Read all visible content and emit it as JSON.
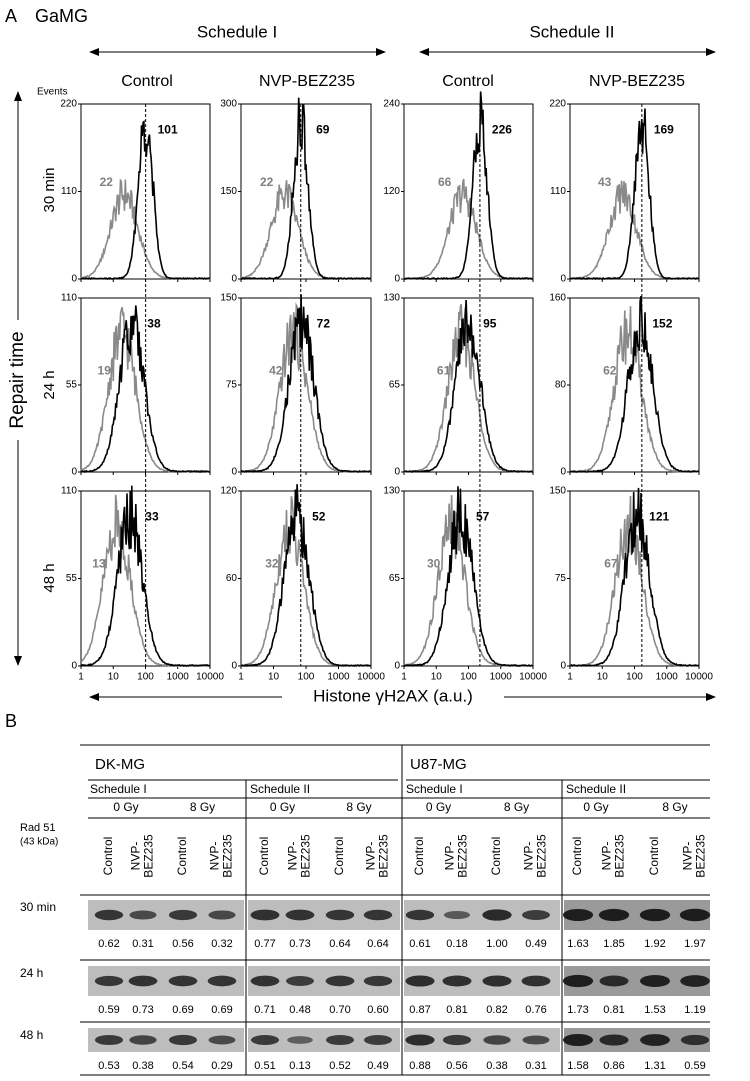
{
  "panel_a": {
    "label": "A",
    "cell_line": "GaMG",
    "schedules": [
      "Schedule I",
      "Schedule II"
    ],
    "columns": [
      "Control",
      "NVP-BEZ235",
      "Control",
      "NVP-BEZ235"
    ],
    "y_axis_title": "Events",
    "row_axis_title": "Repair time",
    "rows": [
      "30 min",
      "24 h",
      "48 h"
    ],
    "x_axis_title": "Histone γH2AX (a.u.)",
    "xticks": [
      1,
      10,
      100,
      1000,
      10000
    ],
    "panels": [
      [
        {
          "yticks": [
            0,
            110,
            220
          ],
          "gray": 22,
          "black": 101
        },
        {
          "yticks": [
            0,
            150,
            300
          ],
          "gray": 22,
          "black": 69
        },
        {
          "yticks": [
            0,
            120,
            240
          ],
          "gray": 66,
          "black": 226
        },
        {
          "yticks": [
            0,
            110,
            220
          ],
          "gray": 43,
          "black": 169
        }
      ],
      [
        {
          "yticks": [
            0,
            55,
            110
          ],
          "gray": 19,
          "black": 38
        },
        {
          "yticks": [
            0,
            75,
            150
          ],
          "gray": 42,
          "black": 72
        },
        {
          "yticks": [
            0,
            65,
            130
          ],
          "gray": 61,
          "black": 95
        },
        {
          "yticks": [
            0,
            80,
            160
          ],
          "gray": 62,
          "black": 152
        }
      ],
      [
        {
          "yticks": [
            0,
            55,
            110
          ],
          "gray": 13,
          "black": 33
        },
        {
          "yticks": [
            0,
            60,
            120
          ],
          "gray": 32,
          "black": 52
        },
        {
          "yticks": [
            0,
            65,
            130
          ],
          "gray": 30,
          "black": 57
        },
        {
          "yticks": [
            0,
            75,
            150
          ],
          "gray": 67,
          "black": 121
        }
      ]
    ]
  },
  "panel_b": {
    "label": "B",
    "protein": "Rad 51",
    "mw": "(43 kDa)",
    "cell_lines": [
      {
        "name": "DK-MG",
        "schedules": [
          {
            "name": "Schedule I",
            "doses": [
              "0 Gy",
              "8 Gy"
            ]
          },
          {
            "name": "Schedule II",
            "doses": [
              "0 Gy",
              "8 Gy"
            ]
          }
        ]
      },
      {
        "name": "U87-MG",
        "schedules": [
          {
            "name": "Schedule I",
            "doses": [
              "0 Gy",
              "8 Gy"
            ]
          },
          {
            "name": "Schedule II",
            "doses": [
              "0 Gy",
              "8 Gy"
            ]
          }
        ]
      }
    ],
    "lane_labels": [
      [
        "Control"
      ],
      [
        "NVP-",
        "BEZ235"
      ]
    ],
    "rows": [
      {
        "time": "30 min",
        "values": [
          0.62,
          0.31,
          0.56,
          0.32,
          0.77,
          0.73,
          0.64,
          0.64,
          0.61,
          0.18,
          1.0,
          0.49,
          1.63,
          1.85,
          1.92,
          1.97
        ],
        "value_labels": [
          "0.62",
          "0.31",
          "0.56",
          "0.32",
          "0.77",
          "0.73",
          "0.64",
          "0.64",
          "0.61",
          "0.18",
          "1.00",
          "0.49",
          "1.63",
          "1.85",
          "1.92",
          "1.97"
        ]
      },
      {
        "time": "24 h",
        "values": [
          0.59,
          0.73,
          0.69,
          0.69,
          0.71,
          0.48,
          0.7,
          0.6,
          0.87,
          0.81,
          0.82,
          0.76,
          1.73,
          0.81,
          1.53,
          1.19
        ],
        "value_labels": [
          "0.59",
          "0.73",
          "0.69",
          "0.69",
          "0.71",
          "0.48",
          "0.70",
          "0.60",
          "0.87",
          "0.81",
          "0.82",
          "0.76",
          "1.73",
          "0.81",
          "1.53",
          "1.19"
        ]
      },
      {
        "time": "48 h",
        "values": [
          0.53,
          0.38,
          0.54,
          0.29,
          0.51,
          0.13,
          0.52,
          0.49,
          0.88,
          0.56,
          0.38,
          0.31,
          1.58,
          0.86,
          1.31,
          0.59
        ],
        "value_labels": [
          "0.53",
          "0.38",
          "0.54",
          "0.29",
          "0.51",
          "0.13",
          "0.52",
          "0.49",
          "0.88",
          "0.56",
          "0.38",
          "0.31",
          "1.58",
          "0.86",
          "1.31",
          "0.59"
        ]
      }
    ]
  }
}
